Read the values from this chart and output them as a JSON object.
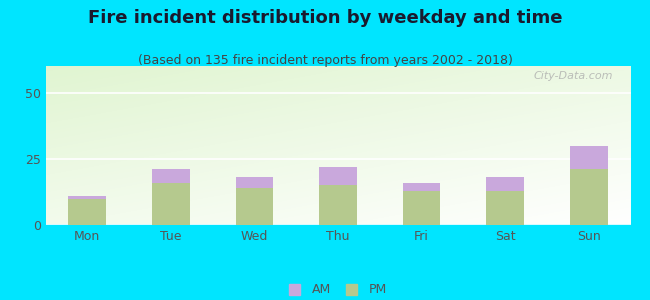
{
  "title": "Fire incident distribution by weekday and time",
  "subtitle": "(Based on 135 fire incident reports from years 2002 - 2018)",
  "categories": [
    "Mon",
    "Tue",
    "Wed",
    "Thu",
    "Fri",
    "Sat",
    "Sun"
  ],
  "pm_values": [
    10,
    16,
    14,
    15,
    13,
    13,
    21
  ],
  "am_values": [
    1,
    5,
    4,
    7,
    3,
    5,
    9
  ],
  "pm_color": "#b5c98e",
  "am_color": "#c9a8dc",
  "ylim": [
    0,
    60
  ],
  "yticks": [
    0,
    25,
    50
  ],
  "background_outer": "#00e5ff",
  "title_fontsize": 13,
  "subtitle_fontsize": 9,
  "watermark": "City-Data.com",
  "bar_width": 0.45,
  "title_color": "#1a1a2e",
  "subtitle_color": "#444444",
  "tick_color": "#555555"
}
